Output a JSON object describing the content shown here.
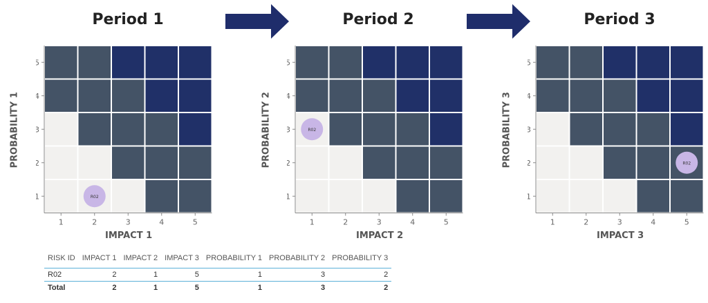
{
  "colors": {
    "low": "#f2f1ef",
    "medium": "#445366",
    "high": "#203068",
    "bubble": "#c8b6e6",
    "arrow": "#1f2d6b",
    "axis": "#888888"
  },
  "chart_data": [
    {
      "type": "heatmap",
      "title": "Period 1",
      "xlabel": "IMPACT 1",
      "ylabel": "PROBABILITY 1",
      "x_ticks": [
        "1",
        "2",
        "3",
        "4",
        "5"
      ],
      "y_ticks": [
        "1",
        "2",
        "3",
        "4",
        "5"
      ],
      "grid_rows_top_to_bottom": [
        [
          "medium",
          "medium",
          "high",
          "high",
          "high"
        ],
        [
          "medium",
          "medium",
          "medium",
          "high",
          "high"
        ],
        [
          "low",
          "medium",
          "medium",
          "medium",
          "high"
        ],
        [
          "low",
          "low",
          "medium",
          "medium",
          "medium"
        ],
        [
          "low",
          "low",
          "low",
          "medium",
          "medium"
        ]
      ],
      "points": [
        {
          "label": "R02",
          "impact": 2,
          "probability": 1
        }
      ]
    },
    {
      "type": "heatmap",
      "title": "Period 2",
      "xlabel": "IMPACT 2",
      "ylabel": "PROBABILITY 2",
      "x_ticks": [
        "1",
        "2",
        "3",
        "4",
        "5"
      ],
      "y_ticks": [
        "1",
        "2",
        "3",
        "4",
        "5"
      ],
      "grid_rows_top_to_bottom": [
        [
          "medium",
          "medium",
          "high",
          "high",
          "high"
        ],
        [
          "medium",
          "medium",
          "medium",
          "high",
          "high"
        ],
        [
          "low",
          "medium",
          "medium",
          "medium",
          "high"
        ],
        [
          "low",
          "low",
          "medium",
          "medium",
          "medium"
        ],
        [
          "low",
          "low",
          "low",
          "medium",
          "medium"
        ]
      ],
      "points": [
        {
          "label": "R02",
          "impact": 1,
          "probability": 3
        }
      ]
    },
    {
      "type": "heatmap",
      "title": "Period 3",
      "xlabel": "IMPACT 3",
      "ylabel": "PROBABILITY 3",
      "x_ticks": [
        "1",
        "2",
        "3",
        "4",
        "5"
      ],
      "y_ticks": [
        "1",
        "2",
        "3",
        "4",
        "5"
      ],
      "grid_rows_top_to_bottom": [
        [
          "medium",
          "medium",
          "high",
          "high",
          "high"
        ],
        [
          "medium",
          "medium",
          "medium",
          "high",
          "high"
        ],
        [
          "low",
          "medium",
          "medium",
          "medium",
          "high"
        ],
        [
          "low",
          "low",
          "medium",
          "medium",
          "medium"
        ],
        [
          "low",
          "low",
          "low",
          "medium",
          "medium"
        ]
      ],
      "points": [
        {
          "label": "R02",
          "impact": 5,
          "probability": 2
        }
      ]
    },
    {
      "type": "table",
      "headers": [
        "RISK ID",
        "IMPACT 1",
        "IMPACT 2",
        "IMPACT 3",
        "PROBABILITY 1",
        "PROBABILITY 2",
        "PROBABILITY 3"
      ],
      "rows": [
        [
          "R02",
          "2",
          "1",
          "5",
          "1",
          "3",
          "2"
        ]
      ],
      "total": [
        "Total",
        "2",
        "1",
        "5",
        "1",
        "3",
        "2"
      ]
    }
  ]
}
